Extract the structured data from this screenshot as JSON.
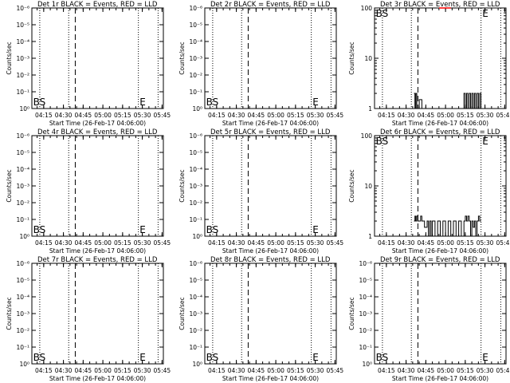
{
  "chart_data": [
    {
      "type": "line",
      "title": "Det 1r BLACK = Events, RED = LLD",
      "xlabel": "Start Time (26-Feb-17 04:06:00)",
      "ylabel": "Counts/sec",
      "y_scale": "log",
      "yticks": [
        "10⁰",
        "10⁻¹",
        "10⁻²",
        "10⁻³",
        "10⁻⁴",
        "10⁻⁵",
        "10⁻⁶"
      ],
      "xticks": [
        "04:15",
        "04:30",
        "04:45",
        "05:00",
        "05:15",
        "05:30",
        "05:45"
      ],
      "markers": [
        "BS",
        "E"
      ],
      "series": []
    },
    {
      "type": "line",
      "title": "Det 2r BLACK = Events, RED = LLD",
      "xlabel": "Start Time (26-Feb-17 04:06:00)",
      "ylabel": "Counts/sec",
      "y_scale": "log",
      "yticks": [
        "10⁰",
        "10⁻¹",
        "10⁻²",
        "10⁻³",
        "10⁻⁴",
        "10⁻⁵",
        "10⁻⁶"
      ],
      "xticks": [
        "04:15",
        "04:30",
        "04:45",
        "05:00",
        "05:15",
        "05:30",
        "05:45"
      ],
      "markers": [
        "BS",
        "E"
      ],
      "series": []
    },
    {
      "type": "line",
      "title": "Det 3r BLACK = Events, RED = LLD",
      "xlabel": "Start Time (26-Feb-17 04:06:00)",
      "ylabel": "Counts/sec",
      "y_scale": "log",
      "yticks": [
        "1",
        "10",
        "100"
      ],
      "xticks": [
        "04:15",
        "04:30",
        "04:45",
        "05:00",
        "05:15",
        "05:30",
        "05:45"
      ],
      "markers": [
        "BS",
        "E"
      ],
      "series": [
        {
          "color": "#000000",
          "x_min": [
            30,
            30.7,
            31.4,
            32.1,
            34,
            36,
            40,
            43,
            46,
            50,
            56,
            58,
            62,
            66,
            68,
            69,
            70,
            71,
            72,
            73,
            74,
            75,
            76,
            77,
            78,
            79,
            80,
            81
          ],
          "y": [
            2,
            1,
            2,
            1,
            1.5,
            1,
            1,
            1,
            1,
            1,
            1,
            1,
            1,
            1,
            2,
            1,
            2,
            1,
            2,
            1,
            2,
            1,
            2,
            1,
            2,
            1,
            2,
            1
          ]
        },
        {
          "color": "#ff0000",
          "x_min": [
            49,
            58
          ],
          "y": [
            100,
            100
          ]
        }
      ]
    },
    {
      "type": "line",
      "title": "Det 4r BLACK = Events, RED = LLD",
      "xlabel": "Start Time (26-Feb-17 04:06:00)",
      "ylabel": "Counts/sec",
      "y_scale": "log",
      "yticks": [
        "10⁰",
        "10⁻¹",
        "10⁻²",
        "10⁻³",
        "10⁻⁴",
        "10⁻⁵",
        "10⁻⁶"
      ],
      "xticks": [
        "04:15",
        "04:30",
        "04:45",
        "05:00",
        "05:15",
        "05:30",
        "05:45"
      ],
      "markers": [
        "BS",
        "E"
      ],
      "series": []
    },
    {
      "type": "line",
      "title": "Det 5r BLACK = Events, RED = LLD",
      "xlabel": "Start Time (26-Feb-17 04:06:00)",
      "ylabel": "Counts/sec",
      "y_scale": "log",
      "yticks": [
        "10⁰",
        "10⁻¹",
        "10⁻²",
        "10⁻³",
        "10⁻⁴",
        "10⁻⁵",
        "10⁻⁶"
      ],
      "xticks": [
        "04:15",
        "04:30",
        "04:45",
        "05:00",
        "05:15",
        "05:30",
        "05:45"
      ],
      "markers": [
        "BS",
        "E"
      ],
      "series": []
    },
    {
      "type": "line",
      "title": "Det 6r BLACK = Events, RED = LLD",
      "xlabel": "Start Time (26-Feb-17 04:06:00)",
      "ylabel": "Counts/sec",
      "y_scale": "log",
      "yticks": [
        "1",
        "10",
        "100"
      ],
      "xticks": [
        "04:15",
        "04:30",
        "04:45",
        "05:00",
        "05:15",
        "05:30",
        "05:45"
      ],
      "markers": [
        "BS",
        "E"
      ],
      "series": [
        {
          "color": "#000000",
          "x_min": [
            30,
            30.7,
            31.4,
            32.1,
            33,
            34,
            35,
            36,
            38,
            40,
            41,
            42,
            43,
            44,
            46,
            48,
            50,
            52,
            54,
            56,
            58,
            60,
            62,
            64,
            66,
            68,
            69,
            70,
            71,
            72,
            73,
            74,
            75,
            76,
            77,
            78,
            79,
            80,
            81
          ],
          "y": [
            2,
            2.5,
            2,
            2.5,
            2,
            2,
            2.5,
            2,
            1.5,
            2,
            1,
            2,
            1,
            2,
            1,
            2,
            1,
            2,
            1,
            2,
            1,
            2,
            1,
            2,
            1,
            2,
            2.5,
            2,
            2.5,
            2,
            1,
            2,
            1.5,
            2,
            1,
            2,
            2.5,
            2,
            2
          ]
        }
      ]
    },
    {
      "type": "line",
      "title": "Det 7r BLACK = Events, RED = LLD",
      "xlabel": "Start Time (26-Feb-17 04:06:00)",
      "ylabel": "Counts/sec",
      "y_scale": "log",
      "yticks": [
        "10⁰",
        "10⁻¹",
        "10⁻²",
        "10⁻³",
        "10⁻⁴",
        "10⁻⁵",
        "10⁻⁶"
      ],
      "xticks": [
        "04:15",
        "04:30",
        "04:45",
        "05:00",
        "05:15",
        "05:30",
        "05:45"
      ],
      "markers": [
        "BS",
        "E"
      ],
      "series": []
    },
    {
      "type": "line",
      "title": "Det 8r BLACK = Events, RED = LLD",
      "xlabel": "Start Time (26-Feb-17 04:06:00)",
      "ylabel": "Counts/sec",
      "y_scale": "log",
      "yticks": [
        "10⁰",
        "10⁻¹",
        "10⁻²",
        "10⁻³",
        "10⁻⁴",
        "10⁻⁵",
        "10⁻⁶"
      ],
      "xticks": [
        "04:15",
        "04:30",
        "04:45",
        "05:00",
        "05:15",
        "05:30",
        "05:45"
      ],
      "markers": [
        "BS",
        "E"
      ],
      "series": []
    },
    {
      "type": "line",
      "title": "Det 9r BLACK = Events, RED = LLD",
      "xlabel": "Start Time (26-Feb-17 04:06:00)",
      "ylabel": "Counts/sec",
      "y_scale": "log",
      "yticks": [
        "10⁰",
        "10⁻¹",
        "10⁻²",
        "10⁻³",
        "10⁻⁴",
        "10⁻⁵",
        "10⁻⁶"
      ],
      "xticks": [
        "04:15",
        "04:30",
        "04:45",
        "05:00",
        "05:15",
        "05:30",
        "05:45"
      ],
      "markers": [
        "BS",
        "E"
      ],
      "series": []
    }
  ]
}
